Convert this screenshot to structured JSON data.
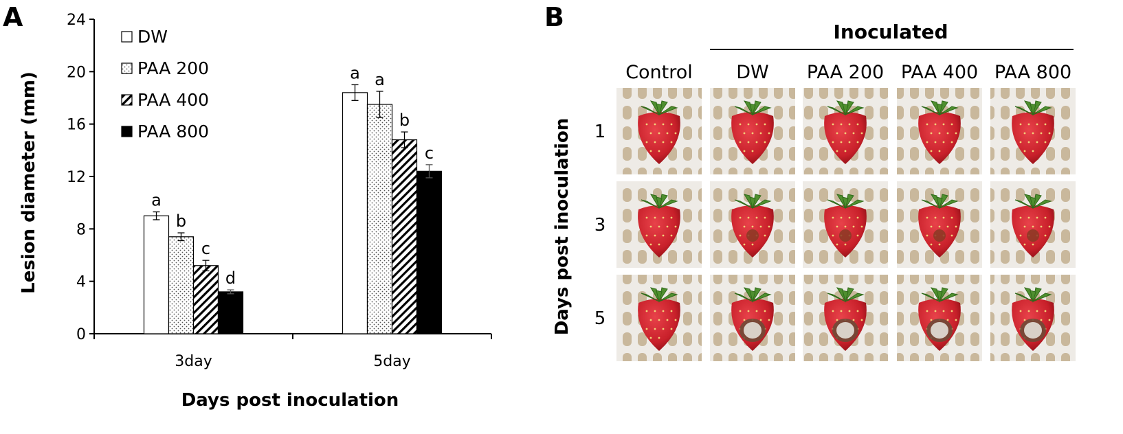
{
  "panel_a_label": "A",
  "panel_b_label": "B",
  "chart_data": {
    "type": "bar",
    "categories": [
      "3day",
      "5day"
    ],
    "xlabel": "Days post inoculation",
    "ylabel": "Lesion diameter (mm)",
    "ylim": [
      0,
      24
    ],
    "yticks": [
      "0",
      "4",
      "8",
      "12",
      "16",
      "20",
      "24"
    ],
    "grid": false,
    "legend_position": "top-left",
    "series": [
      {
        "name": "DW",
        "values": [
          9.0,
          18.4
        ],
        "errors": [
          0.3,
          0.6
        ],
        "letters": [
          "a",
          "a"
        ],
        "pattern": "white"
      },
      {
        "name": "PAA 200",
        "values": [
          7.4,
          17.5
        ],
        "errors": [
          0.3,
          1.0
        ],
        "letters": [
          "b",
          "a"
        ],
        "pattern": "dots"
      },
      {
        "name": "PAA 400",
        "values": [
          5.2,
          14.8
        ],
        "errors": [
          0.4,
          0.6
        ],
        "letters": [
          "c",
          "b"
        ],
        "pattern": "hatch"
      },
      {
        "name": "PAA 800",
        "values": [
          3.2,
          12.4
        ],
        "errors": [
          0.15,
          0.5
        ],
        "letters": [
          "d",
          "c"
        ],
        "pattern": "black"
      }
    ]
  },
  "photo_grid": {
    "group_label": "Inoculated",
    "columns": [
      "Control",
      "DW",
      "PAA 200",
      "PAA 400",
      "PAA 800"
    ],
    "rows": [
      "1",
      "3",
      "5"
    ],
    "row_axis_label": "Days post inoculation",
    "lesions": [
      [
        0,
        0,
        0,
        0,
        0
      ],
      [
        0,
        1,
        1,
        1,
        1
      ],
      [
        0,
        2,
        2,
        2,
        2
      ]
    ]
  }
}
